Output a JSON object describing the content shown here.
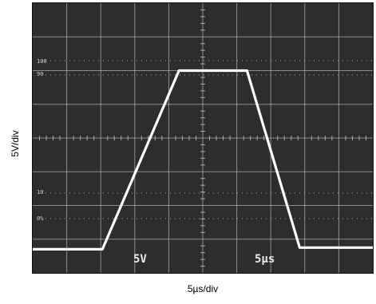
{
  "chart_data": {
    "type": "line",
    "xlabel": "5µs/div",
    "ylabel": "5V/div",
    "xlim": [
      0,
      10
    ],
    "ylim": [
      0,
      8
    ],
    "grid": true,
    "screen_labels": {
      "p100": "100",
      "p90": "90",
      "p10": "10",
      "p0": "0%",
      "volts_per_div": "5V",
      "time_per_div": "5µs"
    },
    "colors": {
      "screen_background": "#2d2d2d",
      "grid_line": "#d8d8d8",
      "trace": "#ffffff",
      "label_text": "#e8e8e8"
    },
    "series": [
      {
        "x": [
          0,
          2.05,
          4.3,
          6.3,
          7.85,
          10
        ],
        "y": [
          0.7,
          0.7,
          6.0,
          6.0,
          0.75,
          0.75
        ]
      }
    ]
  }
}
